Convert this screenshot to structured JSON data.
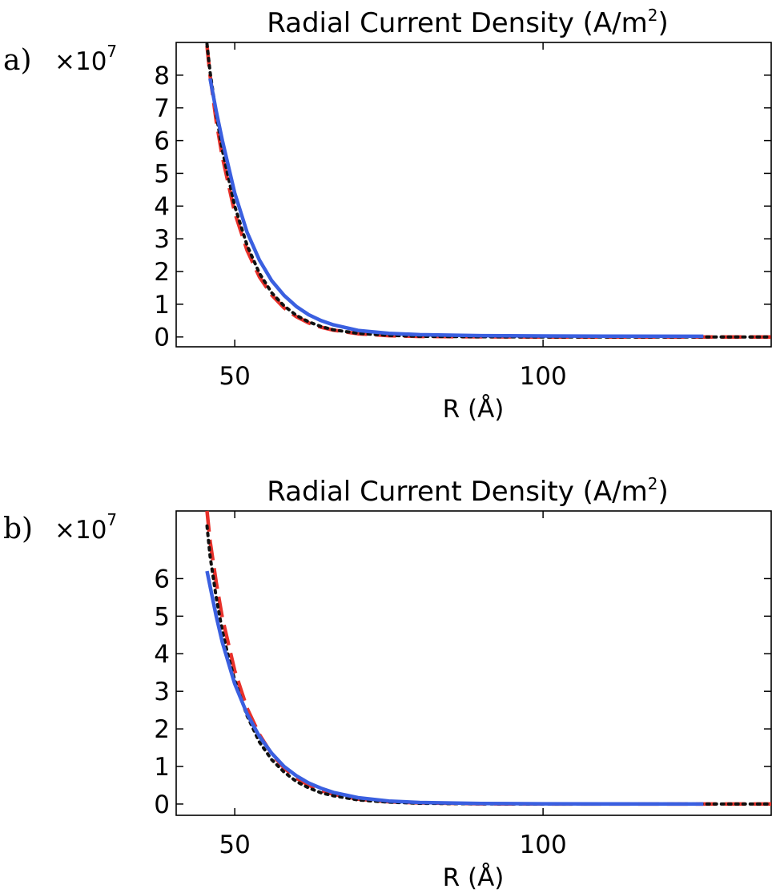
{
  "chart_data": [
    {
      "type": "line",
      "panel_label": "a)",
      "title_main": "Radial Current Density (A/m",
      "title_sup": "2",
      "title_end": ")",
      "multiplier_base": "×10",
      "multiplier_exp": "7",
      "xlabel": "R (Å)",
      "ylabel": "",
      "xlim": [
        40.5,
        137
      ],
      "ylim": [
        -0.3,
        9.0
      ],
      "xticks": [
        50,
        100
      ],
      "yticks": [
        0,
        1,
        2,
        3,
        4,
        5,
        6,
        7,
        8
      ],
      "grid": false,
      "series": [
        {
          "style": "dashed",
          "color": "#e8312a",
          "x": [
            45.5,
            46,
            47,
            48,
            50,
            52,
            54,
            56,
            58,
            60,
            62,
            64,
            66,
            70,
            75,
            80,
            90,
            100,
            110,
            120,
            137
          ],
          "y": [
            8.9,
            8.0,
            6.6,
            5.5,
            3.8,
            2.65,
            1.84,
            1.28,
            0.89,
            0.62,
            0.43,
            0.3,
            0.21,
            0.1,
            0.04,
            0.015,
            0.005,
            0.0,
            0.0,
            0.0,
            0.0
          ]
        },
        {
          "style": "dotted",
          "color": "#111111",
          "x": [
            45.5,
            46,
            47,
            48,
            50,
            52,
            54,
            56,
            58,
            60,
            62,
            64,
            66,
            70,
            75,
            80,
            90,
            100,
            110,
            120,
            137
          ],
          "y": [
            8.95,
            8.1,
            6.8,
            5.7,
            4.0,
            2.8,
            1.95,
            1.35,
            0.95,
            0.66,
            0.46,
            0.32,
            0.22,
            0.11,
            0.05,
            0.02,
            0.006,
            0.0,
            0.0,
            0.0,
            0.0
          ]
        },
        {
          "style": "solid",
          "color": "#3a5fe0",
          "x": [
            46,
            47,
            48,
            50,
            52,
            54,
            56,
            58,
            60,
            62,
            64,
            66,
            70,
            75,
            80,
            90,
            100,
            110,
            126
          ],
          "y": [
            7.9,
            6.9,
            6.0,
            4.4,
            3.2,
            2.35,
            1.72,
            1.27,
            0.93,
            0.68,
            0.5,
            0.37,
            0.2,
            0.11,
            0.07,
            0.04,
            0.03,
            0.025,
            0.02
          ]
        }
      ]
    },
    {
      "type": "line",
      "panel_label": "b)",
      "title_main": "Radial Current Density (A/m",
      "title_sup": "2",
      "title_end": ")",
      "multiplier_base": "×10",
      "multiplier_exp": "7",
      "xlabel": "R (Å)",
      "ylabel": "",
      "xlim": [
        40.5,
        137
      ],
      "ylim": [
        -0.3,
        7.8
      ],
      "xticks": [
        50,
        100
      ],
      "yticks": [
        0,
        1,
        2,
        3,
        4,
        5,
        6
      ],
      "grid": false,
      "series": [
        {
          "style": "dashed",
          "color": "#e8312a",
          "x": [
            45.5,
            46,
            47,
            48,
            50,
            52,
            54,
            56,
            58,
            60,
            62,
            64,
            66,
            70,
            75,
            80,
            90,
            100,
            110,
            120,
            137
          ],
          "y": [
            7.8,
            7.0,
            5.9,
            4.95,
            3.55,
            2.55,
            1.85,
            1.33,
            0.96,
            0.69,
            0.5,
            0.36,
            0.26,
            0.13,
            0.06,
            0.03,
            0.008,
            0.002,
            0.0,
            0.0,
            0.0
          ]
        },
        {
          "style": "dotted",
          "color": "#111111",
          "x": [
            45.5,
            46,
            47,
            48,
            49,
            50,
            52,
            54,
            56,
            58,
            60,
            62,
            64,
            66,
            70,
            75,
            80,
            90,
            100,
            110,
            120,
            137
          ],
          "y": [
            7.4,
            6.6,
            5.5,
            4.6,
            3.9,
            3.3,
            2.35,
            1.65,
            1.18,
            0.85,
            0.6,
            0.43,
            0.3,
            0.22,
            0.11,
            0.05,
            0.02,
            0.005,
            0.0,
            0.0,
            0.0,
            0.0
          ]
        },
        {
          "style": "solid",
          "color": "#3a5fe0",
          "x": [
            45.5,
            46,
            47,
            48,
            50,
            52,
            54,
            56,
            58,
            60,
            62,
            64,
            66,
            70,
            75,
            80,
            90,
            100,
            110,
            126
          ],
          "y": [
            6.2,
            5.8,
            5.0,
            4.3,
            3.2,
            2.4,
            1.8,
            1.35,
            1.0,
            0.75,
            0.56,
            0.42,
            0.31,
            0.17,
            0.08,
            0.04,
            0.015,
            0.006,
            0.003,
            0.0
          ]
        }
      ]
    }
  ]
}
